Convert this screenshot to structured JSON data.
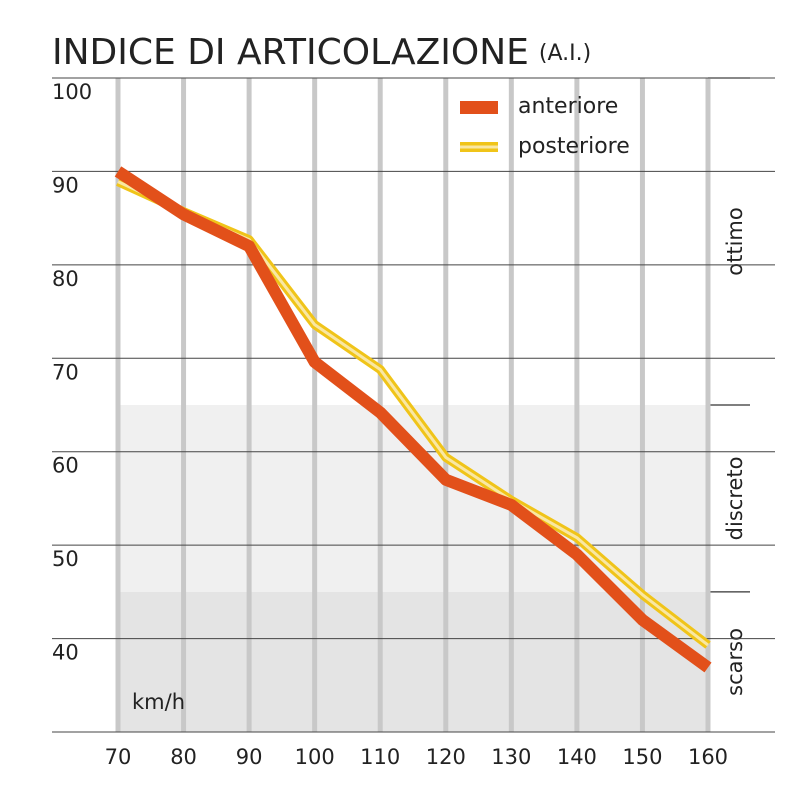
{
  "chart_data": {
    "type": "line",
    "title": "INDICE DI ARTICOLAZIONE",
    "title_suffix": "(A.I.)",
    "x_label": "km/h",
    "x": [
      70,
      80,
      90,
      100,
      110,
      120,
      130,
      140,
      150,
      160
    ],
    "xlim": [
      70,
      160
    ],
    "xticks": [
      70,
      80,
      90,
      100,
      110,
      120,
      130,
      140,
      150,
      160
    ],
    "ylim": [
      30,
      100
    ],
    "yticks": [
      40,
      50,
      60,
      70,
      80,
      90,
      100
    ],
    "grid": true,
    "legend": "top-right",
    "bands": [
      {
        "label": "ottimo",
        "from": 65,
        "to": 100,
        "color": "#ffffff"
      },
      {
        "label": "discreto",
        "from": 45,
        "to": 65,
        "color": "#f0f0f0"
      },
      {
        "label": "scarso",
        "from": 30,
        "to": 45,
        "color": "#e4e4e4"
      }
    ],
    "series": [
      {
        "name": "anteriore",
        "color": "#e2501a",
        "values": [
          90,
          85.4,
          82,
          69.6,
          64.2,
          57,
          54.3,
          49,
          42,
          36.9
        ]
      },
      {
        "name": "posteriore",
        "color": "#f0c419",
        "values": [
          88.9,
          85.7,
          82.7,
          73.6,
          68.8,
          59.4,
          54.8,
          50.8,
          44.7,
          39.3
        ]
      }
    ]
  }
}
